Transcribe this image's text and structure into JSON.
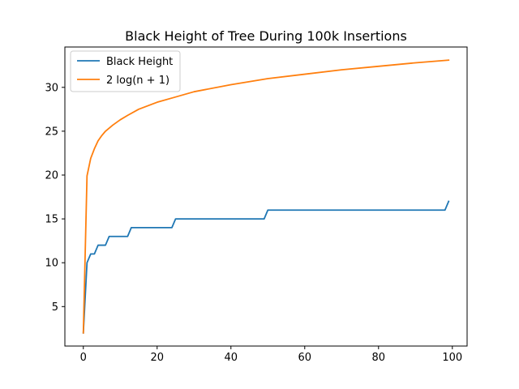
{
  "chart_data": {
    "type": "line",
    "title": "Black Height of Tree During 100k Insertions",
    "xlabel": "",
    "ylabel": "",
    "xlim": [
      -5,
      104
    ],
    "ylim": [
      0.5,
      34.6
    ],
    "x_ticks": [
      0,
      20,
      40,
      60,
      80,
      100
    ],
    "y_ticks": [
      5,
      10,
      15,
      20,
      25,
      30
    ],
    "grid": false,
    "legend_position": "top-left",
    "series": [
      {
        "name": "Black Height",
        "color": "#1f77b4",
        "x": [
          0,
          1,
          2,
          3,
          4,
          5,
          6,
          7,
          8,
          9,
          10,
          11,
          12,
          13,
          14,
          15,
          16,
          17,
          18,
          19,
          20,
          21,
          22,
          23,
          24,
          25,
          26,
          27,
          28,
          29,
          30,
          31,
          32,
          33,
          34,
          35,
          36,
          37,
          38,
          39,
          40,
          41,
          42,
          43,
          44,
          45,
          46,
          47,
          48,
          49,
          50,
          51,
          52,
          53,
          54,
          55,
          56,
          57,
          58,
          59,
          60,
          61,
          62,
          63,
          64,
          65,
          66,
          67,
          68,
          69,
          70,
          71,
          72,
          73,
          74,
          75,
          76,
          77,
          78,
          79,
          80,
          81,
          82,
          83,
          84,
          85,
          86,
          87,
          88,
          89,
          90,
          91,
          92,
          93,
          94,
          95,
          96,
          97,
          98,
          99
        ],
        "y": [
          2,
          10,
          11,
          11,
          12,
          12,
          12,
          13,
          13,
          13,
          13,
          13,
          13,
          14,
          14,
          14,
          14,
          14,
          14,
          14,
          14,
          14,
          14,
          14,
          14,
          15,
          15,
          15,
          15,
          15,
          15,
          15,
          15,
          15,
          15,
          15,
          15,
          15,
          15,
          15,
          15,
          15,
          15,
          15,
          15,
          15,
          15,
          15,
          15,
          15,
          16,
          16,
          16,
          16,
          16,
          16,
          16,
          16,
          16,
          16,
          16,
          16,
          16,
          16,
          16,
          16,
          16,
          16,
          16,
          16,
          16,
          16,
          16,
          16,
          16,
          16,
          16,
          16,
          16,
          16,
          16,
          16,
          16,
          16,
          16,
          16,
          16,
          16,
          16,
          16,
          16,
          16,
          16,
          16,
          16,
          16,
          16,
          16,
          16,
          17
        ]
      },
      {
        "name": "2 log(n + 1)",
        "color": "#ff7f0e",
        "x": [
          0,
          1,
          2,
          3,
          4,
          5,
          6,
          8,
          10,
          12,
          15,
          20,
          25,
          30,
          40,
          50,
          60,
          70,
          80,
          90,
          99
        ],
        "y": [
          2.0,
          19.9,
          21.9,
          23.0,
          23.9,
          24.5,
          25.0,
          25.7,
          26.3,
          26.8,
          27.5,
          28.3,
          28.9,
          29.5,
          30.3,
          31.0,
          31.5,
          32.0,
          32.4,
          32.8,
          33.1
        ]
      }
    ]
  }
}
